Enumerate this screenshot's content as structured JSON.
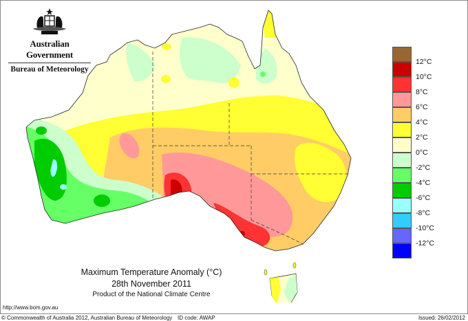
{
  "header": {
    "government": "Australian Government",
    "agency": "Bureau of Meteorology",
    "crest_icon": "coat-of-arms-icon"
  },
  "map": {
    "title": "Maximum Temperature Anomaly (°C)",
    "date": "28th November 2011",
    "product": "Product of the National Climate Centre",
    "region": "Australia"
  },
  "legend": {
    "items": [
      {
        "color": "#996633",
        "label": "12°C"
      },
      {
        "color": "#cc0000",
        "label": "10°C"
      },
      {
        "color": "#ff3333",
        "label": "8°C"
      },
      {
        "color": "#ff9999",
        "label": "6°C"
      },
      {
        "color": "#ffcc66",
        "label": "4°C"
      },
      {
        "color": "#ffff33",
        "label": "2°C"
      },
      {
        "color": "#ffffcc",
        "label": "0°C"
      },
      {
        "color": "#ccffcc",
        "label": "-2°C"
      },
      {
        "color": "#66ff66",
        "label": "-4°C"
      },
      {
        "color": "#00cc00",
        "label": "-6°C"
      },
      {
        "color": "#99ffff",
        "label": "-8°C"
      },
      {
        "color": "#33ccff",
        "label": "-10°C"
      },
      {
        "color": "#6666ff",
        "label": "-12°C"
      },
      {
        "color": "#0000ff",
        "label": ""
      }
    ]
  },
  "footer": {
    "url": "http://www.bom.gov.au",
    "copyright": "© Commonwealth of Australia 2012, Australian Bureau of Meteorology",
    "id_code": "ID code: AWAP",
    "issued": "Issued: 26/02/2012"
  }
}
